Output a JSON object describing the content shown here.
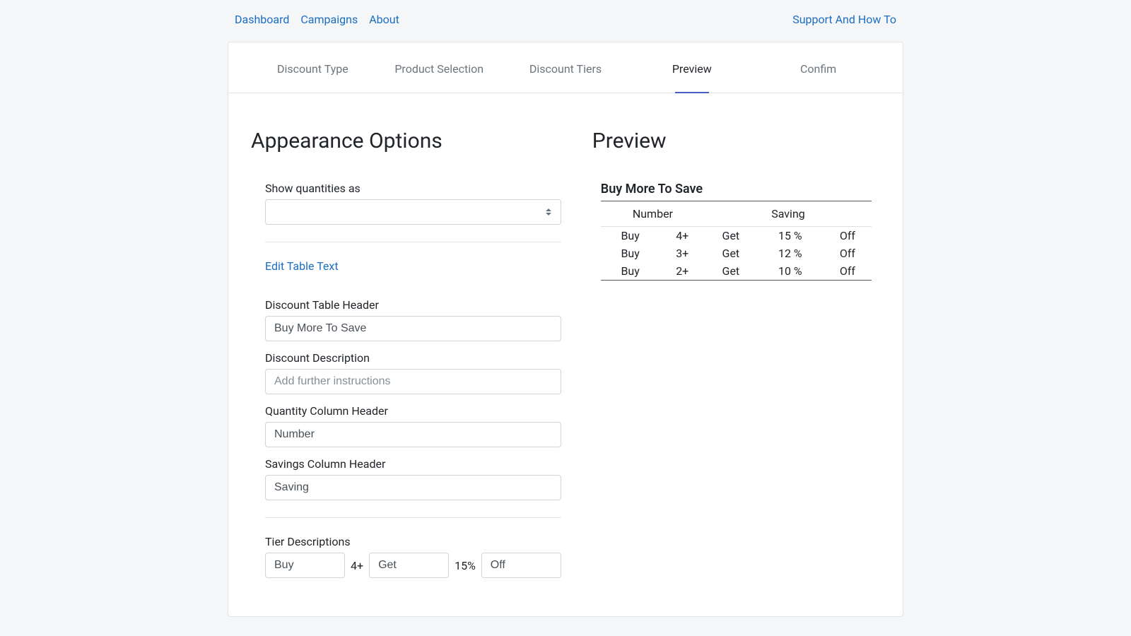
{
  "nav": {
    "left": [
      "Dashboard",
      "Campaigns",
      "About"
    ],
    "right": "Support And How To"
  },
  "tabs": {
    "items": [
      "Discount Type",
      "Product Selection",
      "Discount Tiers",
      "Preview",
      "Confim"
    ],
    "active": 3
  },
  "left": {
    "heading": "Appearance Options",
    "show_quantities_label": "Show quantities as",
    "show_quantities_value": "",
    "edit_table_text": "Edit Table Text",
    "fields": {
      "discount_table_header": {
        "label": "Discount Table Header",
        "value": "Buy More To Save"
      },
      "discount_description": {
        "label": "Discount Description",
        "placeholder": "Add further instructions",
        "value": ""
      },
      "quantity_column_header": {
        "label": "Quantity Column Header",
        "value": "Number"
      },
      "savings_column_header": {
        "label": "Savings Column Header",
        "value": "Saving"
      }
    },
    "tier_descriptions_label": "Tier Descriptions",
    "tier": {
      "buy": "Buy",
      "qty": "4+",
      "get": "Get",
      "pct": "15%",
      "off": "Off"
    }
  },
  "right": {
    "heading": "Preview",
    "table_title": "Buy More To Save",
    "columns": {
      "number": "Number",
      "saving": "Saving"
    },
    "rows": [
      {
        "buy": "Buy",
        "qty": "4+",
        "get": "Get",
        "pct": "15 %",
        "off": "Off"
      },
      {
        "buy": "Buy",
        "qty": "3+",
        "get": "Get",
        "pct": "12 %",
        "off": "Off"
      },
      {
        "buy": "Buy",
        "qty": "2+",
        "get": "Get",
        "pct": "10 %",
        "off": "Off"
      }
    ]
  }
}
